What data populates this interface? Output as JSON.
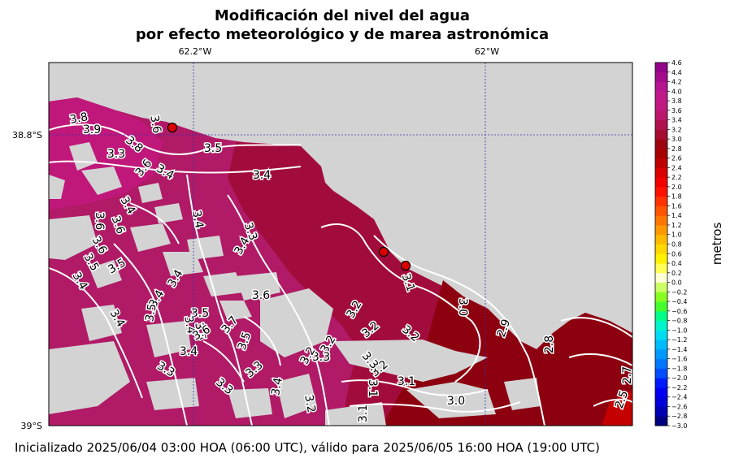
{
  "title": {
    "line1": "Modificación del nivel del agua",
    "line2": "por efecto meteorológico y de marea astronómica"
  },
  "footer": "Inicializado 2025/06/04 03:00 HOA (06:00 UTC), válido para 2025/06/05 16:00 HOA (19:00 UTC)",
  "map": {
    "lon_ticks": [
      "62.2°W",
      "62°W"
    ],
    "lat_ticks": [
      "38.8°S",
      "39°S"
    ],
    "gridlines": true,
    "land_color": "#d3d3d3",
    "contour_color": "#ffffff",
    "markers": [
      {
        "name": "station-1"
      },
      {
        "name": "station-2"
      },
      {
        "name": "station-3"
      }
    ]
  },
  "contour_labels": [
    {
      "text": "3.8"
    },
    {
      "text": "3.9"
    },
    {
      "text": "3.6"
    },
    {
      "text": "3.3"
    },
    {
      "text": "3.8"
    },
    {
      "text": "3.5"
    },
    {
      "text": "3.6"
    },
    {
      "text": "3.4"
    },
    {
      "text": "3.4"
    },
    {
      "text": "3.4"
    },
    {
      "text": "3.6"
    },
    {
      "text": "3.6"
    },
    {
      "text": "3.4"
    },
    {
      "text": "3.6"
    },
    {
      "text": "3.3"
    },
    {
      "text": "3.4"
    },
    {
      "text": "3.5"
    },
    {
      "text": "3.5"
    },
    {
      "text": "3.4"
    },
    {
      "text": "3.4"
    },
    {
      "text": "3.4"
    },
    {
      "text": "3.6"
    },
    {
      "text": "3.5"
    },
    {
      "text": "3.5"
    },
    {
      "text": "3.4"
    },
    {
      "text": "3.4"
    },
    {
      "text": "3.5"
    },
    {
      "text": "3.6"
    },
    {
      "text": "3.7"
    },
    {
      "text": "3.5"
    },
    {
      "text": "3.4"
    },
    {
      "text": "3.3"
    },
    {
      "text": "3.3"
    },
    {
      "text": "3.4"
    },
    {
      "text": "3.3"
    },
    {
      "text": "3.2"
    },
    {
      "text": "3.1"
    },
    {
      "text": "3.2"
    },
    {
      "text": "3.2"
    },
    {
      "text": "3.2"
    },
    {
      "text": "3.3"
    },
    {
      "text": "3.2"
    },
    {
      "text": "3.3"
    },
    {
      "text": "3.2"
    },
    {
      "text": "3.1"
    },
    {
      "text": "3.1"
    },
    {
      "text": "3.0"
    },
    {
      "text": "3.0"
    },
    {
      "text": "3.1"
    },
    {
      "text": "2.9"
    },
    {
      "text": "2.8"
    },
    {
      "text": "2.7"
    },
    {
      "text": "2.5"
    },
    {
      "text": "3.2"
    }
  ],
  "colorbar": {
    "label": "metros",
    "min": -3.0,
    "max": 4.6,
    "step": 0.2,
    "tick_labels": [
      "4.6",
      "4.4",
      "4.2",
      "4.0",
      "3.8",
      "3.6",
      "3.4",
      "3.2",
      "3.0",
      "2.8",
      "2.6",
      "2.4",
      "2.2",
      "2.0",
      "1.8",
      "1.6",
      "1.4",
      "1.2",
      "1.0",
      "0.8",
      "0.6",
      "0.4",
      "0.2",
      "0.0",
      "−0.2",
      "−0.4",
      "−0.6",
      "−0.8",
      "−1.0",
      "−1.2",
      "−1.4",
      "−1.6",
      "−1.8",
      "−2.0",
      "−2.2",
      "−2.4",
      "−2.6",
      "−2.8",
      "−3.0"
    ],
    "stops": [
      {
        "v": -3.0,
        "c": "#000066"
      },
      {
        "v": -2.6,
        "c": "#0000cc"
      },
      {
        "v": -2.2,
        "c": "#0000ff"
      },
      {
        "v": -1.8,
        "c": "#0066ff"
      },
      {
        "v": -1.4,
        "c": "#00aaff"
      },
      {
        "v": -1.0,
        "c": "#00eeee"
      },
      {
        "v": -0.7,
        "c": "#00ff88"
      },
      {
        "v": -0.4,
        "c": "#66ff00"
      },
      {
        "v": -0.1,
        "c": "#ccff66"
      },
      {
        "v": 0.0,
        "c": "#ffffff"
      },
      {
        "v": 0.2,
        "c": "#ffffaa"
      },
      {
        "v": 0.4,
        "c": "#ffff00"
      },
      {
        "v": 0.8,
        "c": "#ffcc00"
      },
      {
        "v": 1.2,
        "c": "#ff8800"
      },
      {
        "v": 1.6,
        "c": "#ff4400"
      },
      {
        "v": 2.0,
        "c": "#ff0000"
      },
      {
        "v": 2.4,
        "c": "#cc0000"
      },
      {
        "v": 2.8,
        "c": "#990000"
      },
      {
        "v": 3.2,
        "c": "#aa1040"
      },
      {
        "v": 3.6,
        "c": "#c0187a"
      },
      {
        "v": 4.0,
        "c": "#c01890"
      },
      {
        "v": 4.6,
        "c": "#8a0088"
      }
    ]
  }
}
